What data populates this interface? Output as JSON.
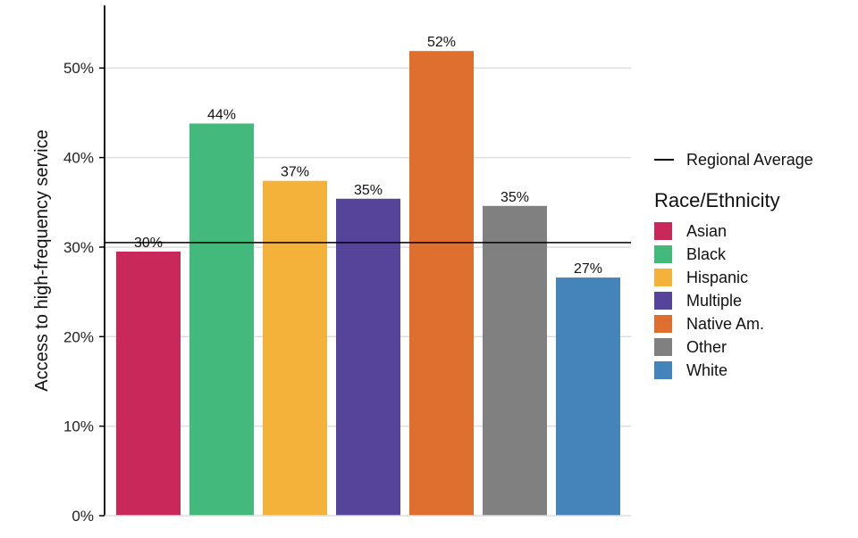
{
  "chart_data": {
    "type": "bar",
    "ylabel": "Access to high-frequency service",
    "xlabel": "",
    "ylim": [
      0,
      0.57
    ],
    "yticks": [
      0,
      0.1,
      0.2,
      0.3,
      0.4,
      0.5
    ],
    "ytick_labels": [
      "0%",
      "10%",
      "20%",
      "30%",
      "40%",
      "50%"
    ],
    "grid": "horizontal",
    "categories": [
      "Asian",
      "Black",
      "Hispanic",
      "Multiple",
      "Native Am.",
      "Other",
      "White"
    ],
    "values": [
      0.295,
      0.438,
      0.374,
      0.354,
      0.519,
      0.346,
      0.266
    ],
    "value_labels": [
      "30%",
      "44%",
      "37%",
      "35%",
      "52%",
      "35%",
      "27%"
    ],
    "colors": [
      "#C9285A",
      "#43BA7C",
      "#F4B23B",
      "#56449A",
      "#DE6F2F",
      "#808080",
      "#4484BB"
    ],
    "reference_line": {
      "label": "Regional Average",
      "value": 0.305,
      "color": "#000000"
    },
    "legend": {
      "title": "Race/Ethnicity",
      "position": "right"
    }
  }
}
